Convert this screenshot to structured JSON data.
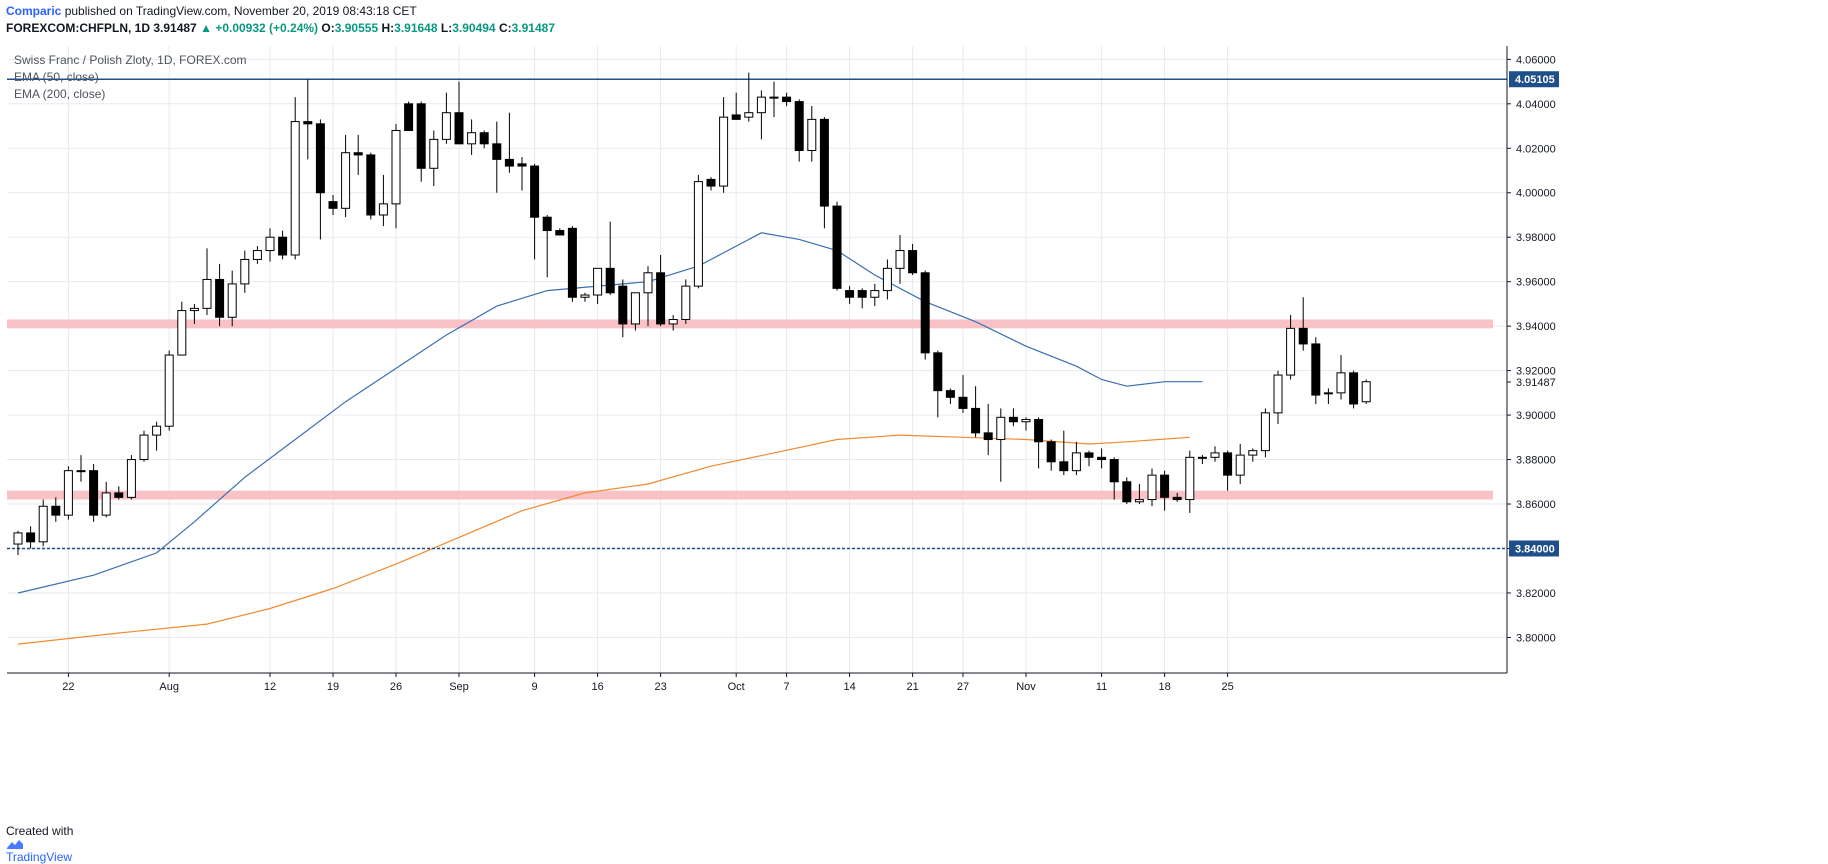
{
  "header": {
    "publisher": "Comparic",
    "published_text": "published on TradingView.com, November 20, 2019 08:43:18 CET"
  },
  "quote": {
    "symbol": "FOREXCOM:CHFPLN, 1D",
    "last": "3.91487",
    "change_icon": "triangle-up-icon",
    "change": "+0.00932 (+0.24%)",
    "o_label": "O:",
    "o": "3.90555",
    "h_label": "H:",
    "h": "3.91648",
    "l_label": "L:",
    "l": "3.90494",
    "c_label": "C:",
    "c": "3.91487"
  },
  "legend": {
    "title": "Swiss Franc / Polish Zloty, 1D, FOREX.com",
    "ema50": "EMA (50, close)",
    "ema200": "EMA (200, close)"
  },
  "footer": {
    "created_with": "Created with",
    "logo_icon": "tradingview-logo-icon",
    "brand": "TradingView"
  },
  "chart_data": {
    "type": "candlestick",
    "ylim": [
      3.784,
      4.066
    ],
    "y_ticks": [
      3.8,
      3.82,
      3.84,
      3.86,
      3.88,
      3.9,
      3.92,
      3.94,
      3.96,
      3.98,
      4.0,
      4.02,
      4.04,
      4.06
    ],
    "x_ticks": [
      {
        "label": "22",
        "i": 4
      },
      {
        "label": "Aug",
        "i": 12
      },
      {
        "label": "12",
        "i": 20
      },
      {
        "label": "19",
        "i": 25
      },
      {
        "label": "26",
        "i": 30
      },
      {
        "label": "Sep",
        "i": 35
      },
      {
        "label": "9",
        "i": 41
      },
      {
        "label": "16",
        "i": 46
      },
      {
        "label": "23",
        "i": 51
      },
      {
        "label": "Oct",
        "i": 57
      },
      {
        "label": "7",
        "i": 61
      },
      {
        "label": "14",
        "i": 66
      },
      {
        "label": "21",
        "i": 71
      },
      {
        "label": "27",
        "i": 75
      },
      {
        "label": "Nov",
        "i": 80
      },
      {
        "label": "11",
        "i": 86
      },
      {
        "label": "18",
        "i": 91
      },
      {
        "label": "25",
        "i": 96
      }
    ],
    "candles": [
      {
        "o": 3.842,
        "h": 3.848,
        "l": 3.837,
        "c": 3.847
      },
      {
        "o": 3.847,
        "h": 3.85,
        "l": 3.84,
        "c": 3.843
      },
      {
        "o": 3.843,
        "h": 3.862,
        "l": 3.841,
        "c": 3.859
      },
      {
        "o": 3.859,
        "h": 3.863,
        "l": 3.852,
        "c": 3.855
      },
      {
        "o": 3.855,
        "h": 3.877,
        "l": 3.853,
        "c": 3.875
      },
      {
        "o": 3.875,
        "h": 3.882,
        "l": 3.87,
        "c": 3.875
      },
      {
        "o": 3.875,
        "h": 3.878,
        "l": 3.852,
        "c": 3.855
      },
      {
        "o": 3.855,
        "h": 3.87,
        "l": 3.854,
        "c": 3.865
      },
      {
        "o": 3.865,
        "h": 3.868,
        "l": 3.862,
        "c": 3.863
      },
      {
        "o": 3.863,
        "h": 3.882,
        "l": 3.862,
        "c": 3.88
      },
      {
        "o": 3.88,
        "h": 3.893,
        "l": 3.879,
        "c": 3.891
      },
      {
        "o": 3.891,
        "h": 3.897,
        "l": 3.884,
        "c": 3.895
      },
      {
        "o": 3.895,
        "h": 3.929,
        "l": 3.893,
        "c": 3.927
      },
      {
        "o": 3.927,
        "h": 3.951,
        "l": 3.927,
        "c": 3.947
      },
      {
        "o": 3.947,
        "h": 3.95,
        "l": 3.941,
        "c": 3.948
      },
      {
        "o": 3.948,
        "h": 3.975,
        "l": 3.945,
        "c": 3.961
      },
      {
        "o": 3.961,
        "h": 3.968,
        "l": 3.94,
        "c": 3.944
      },
      {
        "o": 3.944,
        "h": 3.965,
        "l": 3.94,
        "c": 3.959
      },
      {
        "o": 3.959,
        "h": 3.974,
        "l": 3.955,
        "c": 3.97
      },
      {
        "o": 3.97,
        "h": 3.976,
        "l": 3.968,
        "c": 3.974
      },
      {
        "o": 3.974,
        "h": 3.984,
        "l": 3.969,
        "c": 3.98
      },
      {
        "o": 3.98,
        "h": 3.983,
        "l": 3.97,
        "c": 3.972
      },
      {
        "o": 3.972,
        "h": 4.043,
        "l": 3.97,
        "c": 4.032
      },
      {
        "o": 4.032,
        "h": 4.051,
        "l": 4.015,
        "c": 4.031
      },
      {
        "o": 4.031,
        "h": 4.033,
        "l": 3.979,
        "c": 4.0
      },
      {
        "o": 3.996,
        "h": 3.999,
        "l": 3.99,
        "c": 3.993
      },
      {
        "o": 3.993,
        "h": 4.026,
        "l": 3.989,
        "c": 4.018
      },
      {
        "o": 4.018,
        "h": 4.026,
        "l": 4.008,
        "c": 4.017
      },
      {
        "o": 4.017,
        "h": 4.018,
        "l": 3.988,
        "c": 3.99
      },
      {
        "o": 3.99,
        "h": 4.008,
        "l": 3.985,
        "c": 3.995
      },
      {
        "o": 3.995,
        "h": 4.031,
        "l": 3.984,
        "c": 4.028
      },
      {
        "o": 4.04,
        "h": 4.041,
        "l": 4.029,
        "c": 4.028
      },
      {
        "o": 4.04,
        "h": 4.041,
        "l": 4.005,
        "c": 4.011
      },
      {
        "o": 4.011,
        "h": 4.028,
        "l": 4.003,
        "c": 4.024
      },
      {
        "o": 4.024,
        "h": 4.045,
        "l": 4.022,
        "c": 4.036
      },
      {
        "o": 4.036,
        "h": 4.05,
        "l": 4.022,
        "c": 4.022
      },
      {
        "o": 4.022,
        "h": 4.033,
        "l": 4.017,
        "c": 4.027
      },
      {
        "o": 4.027,
        "h": 4.028,
        "l": 4.02,
        "c": 4.022
      },
      {
        "o": 4.022,
        "h": 4.032,
        "l": 4.0,
        "c": 4.015
      },
      {
        "o": 4.015,
        "h": 4.036,
        "l": 4.009,
        "c": 4.012
      },
      {
        "o": 4.013,
        "h": 4.016,
        "l": 4.001,
        "c": 4.012
      },
      {
        "o": 4.012,
        "h": 4.013,
        "l": 3.97,
        "c": 3.989
      },
      {
        "o": 3.989,
        "h": 3.99,
        "l": 3.962,
        "c": 3.983
      },
      {
        "o": 3.983,
        "h": 3.984,
        "l": 3.981,
        "c": 3.981
      },
      {
        "o": 3.984,
        "h": 3.985,
        "l": 3.951,
        "c": 3.953
      },
      {
        "o": 3.953,
        "h": 3.955,
        "l": 3.951,
        "c": 3.954
      },
      {
        "o": 3.954,
        "h": 3.966,
        "l": 3.95,
        "c": 3.966
      },
      {
        "o": 3.966,
        "h": 3.987,
        "l": 3.954,
        "c": 3.955
      },
      {
        "o": 3.958,
        "h": 3.961,
        "l": 3.935,
        "c": 3.941
      },
      {
        "o": 3.941,
        "h": 3.955,
        "l": 3.938,
        "c": 3.955
      },
      {
        "o": 3.955,
        "h": 3.967,
        "l": 3.94,
        "c": 3.964
      },
      {
        "o": 3.964,
        "h": 3.972,
        "l": 3.94,
        "c": 3.941
      },
      {
        "o": 3.941,
        "h": 3.945,
        "l": 3.938,
        "c": 3.943
      },
      {
        "o": 3.943,
        "h": 3.961,
        "l": 3.941,
        "c": 3.958
      },
      {
        "o": 3.958,
        "h": 4.008,
        "l": 3.957,
        "c": 4.005
      },
      {
        "o": 4.006,
        "h": 4.007,
        "l": 4.001,
        "c": 4.003
      },
      {
        "o": 4.003,
        "h": 4.043,
        "l": 4.0,
        "c": 4.034
      },
      {
        "o": 4.035,
        "h": 4.045,
        "l": 4.034,
        "c": 4.033
      },
      {
        "o": 4.034,
        "h": 4.054,
        "l": 4.032,
        "c": 4.036
      },
      {
        "o": 4.036,
        "h": 4.046,
        "l": 4.024,
        "c": 4.043
      },
      {
        "o": 4.043,
        "h": 4.05,
        "l": 4.034,
        "c": 4.043
      },
      {
        "o": 4.043,
        "h": 4.045,
        "l": 4.039,
        "c": 4.041
      },
      {
        "o": 4.041,
        "h": 4.042,
        "l": 4.014,
        "c": 4.019
      },
      {
        "o": 4.019,
        "h": 4.039,
        "l": 4.014,
        "c": 4.033
      },
      {
        "o": 4.033,
        "h": 4.034,
        "l": 3.984,
        "c": 3.994
      },
      {
        "o": 3.994,
        "h": 3.996,
        "l": 3.956,
        "c": 3.957
      },
      {
        "o": 3.956,
        "h": 3.958,
        "l": 3.95,
        "c": 3.953
      },
      {
        "o": 3.956,
        "h": 3.957,
        "l": 3.948,
        "c": 3.953
      },
      {
        "o": 3.953,
        "h": 3.959,
        "l": 3.949,
        "c": 3.956
      },
      {
        "o": 3.956,
        "h": 3.97,
        "l": 3.952,
        "c": 3.966
      },
      {
        "o": 3.966,
        "h": 3.981,
        "l": 3.959,
        "c": 3.974
      },
      {
        "o": 3.974,
        "h": 3.977,
        "l": 3.963,
        "c": 3.964
      },
      {
        "o": 3.964,
        "h": 3.965,
        "l": 3.925,
        "c": 3.928
      },
      {
        "o": 3.928,
        "h": 3.929,
        "l": 3.899,
        "c": 3.911
      },
      {
        "o": 3.911,
        "h": 3.912,
        "l": 3.905,
        "c": 3.908
      },
      {
        "o": 3.908,
        "h": 3.918,
        "l": 3.901,
        "c": 3.903
      },
      {
        "o": 3.903,
        "h": 3.913,
        "l": 3.89,
        "c": 3.892
      },
      {
        "o": 3.892,
        "h": 3.905,
        "l": 3.882,
        "c": 3.889
      },
      {
        "o": 3.889,
        "h": 3.903,
        "l": 3.87,
        "c": 3.899
      },
      {
        "o": 3.899,
        "h": 3.903,
        "l": 3.895,
        "c": 3.897
      },
      {
        "o": 3.897,
        "h": 3.899,
        "l": 3.893,
        "c": 3.898
      },
      {
        "o": 3.898,
        "h": 3.899,
        "l": 3.876,
        "c": 3.888
      },
      {
        "o": 3.888,
        "h": 3.889,
        "l": 3.875,
        "c": 3.879
      },
      {
        "o": 3.879,
        "h": 3.893,
        "l": 3.873,
        "c": 3.875
      },
      {
        "o": 3.875,
        "h": 3.888,
        "l": 3.873,
        "c": 3.883
      },
      {
        "o": 3.883,
        "h": 3.884,
        "l": 3.877,
        "c": 3.881
      },
      {
        "o": 3.881,
        "h": 3.885,
        "l": 3.876,
        "c": 3.88
      },
      {
        "o": 3.88,
        "h": 3.881,
        "l": 3.862,
        "c": 3.87
      },
      {
        "o": 3.87,
        "h": 3.872,
        "l": 3.86,
        "c": 3.861
      },
      {
        "o": 3.861,
        "h": 3.869,
        "l": 3.86,
        "c": 3.862
      },
      {
        "o": 3.862,
        "h": 3.876,
        "l": 3.859,
        "c": 3.873
      },
      {
        "o": 3.873,
        "h": 3.875,
        "l": 3.857,
        "c": 3.863
      },
      {
        "o": 3.863,
        "h": 3.865,
        "l": 3.861,
        "c": 3.862
      },
      {
        "o": 3.862,
        "h": 3.884,
        "l": 3.856,
        "c": 3.881
      },
      {
        "o": 3.881,
        "h": 3.882,
        "l": 3.878,
        "c": 3.881
      },
      {
        "o": 3.881,
        "h": 3.886,
        "l": 3.879,
        "c": 3.883
      },
      {
        "o": 3.883,
        "h": 3.884,
        "l": 3.866,
        "c": 3.873
      },
      {
        "o": 3.873,
        "h": 3.887,
        "l": 3.869,
        "c": 3.882
      },
      {
        "o": 3.882,
        "h": 3.885,
        "l": 3.879,
        "c": 3.884
      },
      {
        "o": 3.884,
        "h": 3.903,
        "l": 3.881,
        "c": 3.901
      },
      {
        "o": 3.901,
        "h": 3.92,
        "l": 3.896,
        "c": 3.918
      },
      {
        "o": 3.918,
        "h": 3.945,
        "l": 3.916,
        "c": 3.939
      },
      {
        "o": 3.939,
        "h": 3.953,
        "l": 3.929,
        "c": 3.932
      },
      {
        "o": 3.932,
        "h": 3.935,
        "l": 3.905,
        "c": 3.909
      },
      {
        "o": 3.91,
        "h": 3.912,
        "l": 3.905,
        "c": 3.91
      },
      {
        "o": 3.91,
        "h": 3.927,
        "l": 3.907,
        "c": 3.919
      },
      {
        "o": 3.919,
        "h": 3.92,
        "l": 3.903,
        "c": 3.905
      },
      {
        "o": 3.906,
        "h": 3.916,
        "l": 3.905,
        "c": 3.915
      }
    ],
    "ema50": [
      [
        0,
        3.82
      ],
      [
        6,
        3.828
      ],
      [
        11,
        3.838
      ],
      [
        14,
        3.852
      ],
      [
        18,
        3.872
      ],
      [
        22,
        3.889
      ],
      [
        26,
        3.906
      ],
      [
        30,
        3.921
      ],
      [
        34,
        3.936
      ],
      [
        38,
        3.949
      ],
      [
        42,
        3.956
      ],
      [
        46,
        3.958
      ],
      [
        50,
        3.96
      ],
      [
        54,
        3.967
      ],
      [
        57,
        3.976
      ],
      [
        59,
        3.982
      ],
      [
        62,
        3.979
      ],
      [
        65,
        3.974
      ],
      [
        68,
        3.963
      ],
      [
        72,
        3.951
      ],
      [
        76,
        3.942
      ],
      [
        80,
        3.931
      ],
      [
        84,
        3.922
      ],
      [
        86,
        3.916
      ],
      [
        88,
        3.913
      ],
      [
        91,
        3.915
      ],
      [
        94,
        3.915
      ]
    ],
    "ema200": [
      [
        0,
        3.797
      ],
      [
        8,
        3.802
      ],
      [
        15,
        3.806
      ],
      [
        20,
        3.813
      ],
      [
        25,
        3.822
      ],
      [
        30,
        3.833
      ],
      [
        35,
        3.845
      ],
      [
        40,
        3.857
      ],
      [
        45,
        3.865
      ],
      [
        50,
        3.869
      ],
      [
        55,
        3.877
      ],
      [
        60,
        3.883
      ],
      [
        65,
        3.889
      ],
      [
        70,
        3.891
      ],
      [
        75,
        3.89
      ],
      [
        80,
        3.889
      ],
      [
        85,
        3.887
      ],
      [
        88,
        3.888
      ],
      [
        93,
        3.89
      ]
    ],
    "support_resistance": [
      {
        "kind": "zone",
        "from": 3.939,
        "to": 3.943,
        "color": "#f8bbc0"
      },
      {
        "kind": "zone",
        "from": 3.862,
        "to": 3.866,
        "color": "#f8bbc0"
      }
    ],
    "horizontal_lines": [
      {
        "value": 4.05105,
        "style": "solid",
        "color": "#1e4f8a",
        "label": "4.05105"
      },
      {
        "value": 3.84,
        "style": "dashed",
        "color": "#1e4f8a",
        "label": "3.84000"
      }
    ],
    "last_price_label": "3.91487",
    "colors": {
      "bull_body": "#ffffff",
      "bear_body": "#000000",
      "wick": "#000000",
      "ema50": "#3a6fb0",
      "ema200": "#f28a30",
      "grid": "#e6eaf0",
      "axis": "#131722"
    }
  }
}
